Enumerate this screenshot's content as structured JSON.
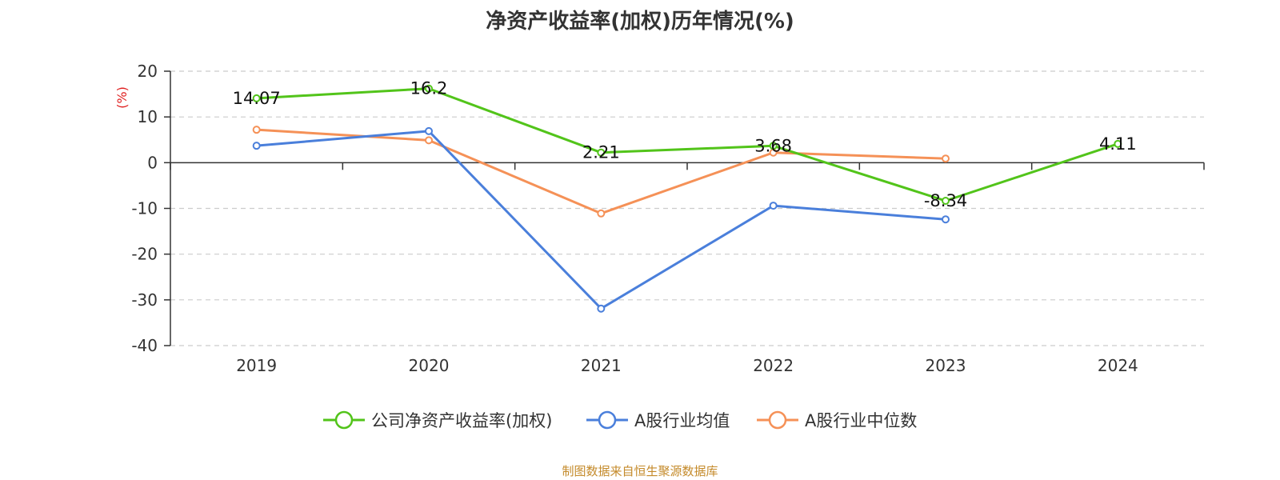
{
  "chart_data": {
    "type": "line",
    "title": "净资产收益率(加权)历年情况(%)",
    "ylabel": "(%)",
    "xlabel": "",
    "categories": [
      "2019",
      "2020",
      "2021",
      "2022",
      "2023",
      "2024"
    ],
    "ylim": [
      -40,
      20
    ],
    "yticks": [
      20,
      10,
      0,
      -10,
      -20,
      -30,
      -40
    ],
    "grid": true,
    "legend_position": "bottom-center",
    "series": [
      {
        "name": "公司净资产收益率(加权)",
        "color": "#52c41a",
        "values": [
          14.07,
          16.2,
          2.21,
          3.68,
          -8.34,
          4.11
        ],
        "labels": [
          "14.07",
          "16.2",
          "2.21",
          "3.68",
          "-8.34",
          "4.11"
        ]
      },
      {
        "name": "A股行业均值",
        "color": "#4a7fdb",
        "values": [
          3.7,
          6.9,
          -31.9,
          -9.4,
          -12.4,
          null
        ]
      },
      {
        "name": "A股行业中位数",
        "color": "#f59157",
        "values": [
          7.2,
          4.9,
          -11.1,
          2.2,
          0.9,
          null
        ]
      }
    ]
  },
  "source": "制图数据来自恒生聚源数据库",
  "colors": {
    "axis": "#333333",
    "grid": "#cccccc",
    "ylabel": "#e02020"
  }
}
